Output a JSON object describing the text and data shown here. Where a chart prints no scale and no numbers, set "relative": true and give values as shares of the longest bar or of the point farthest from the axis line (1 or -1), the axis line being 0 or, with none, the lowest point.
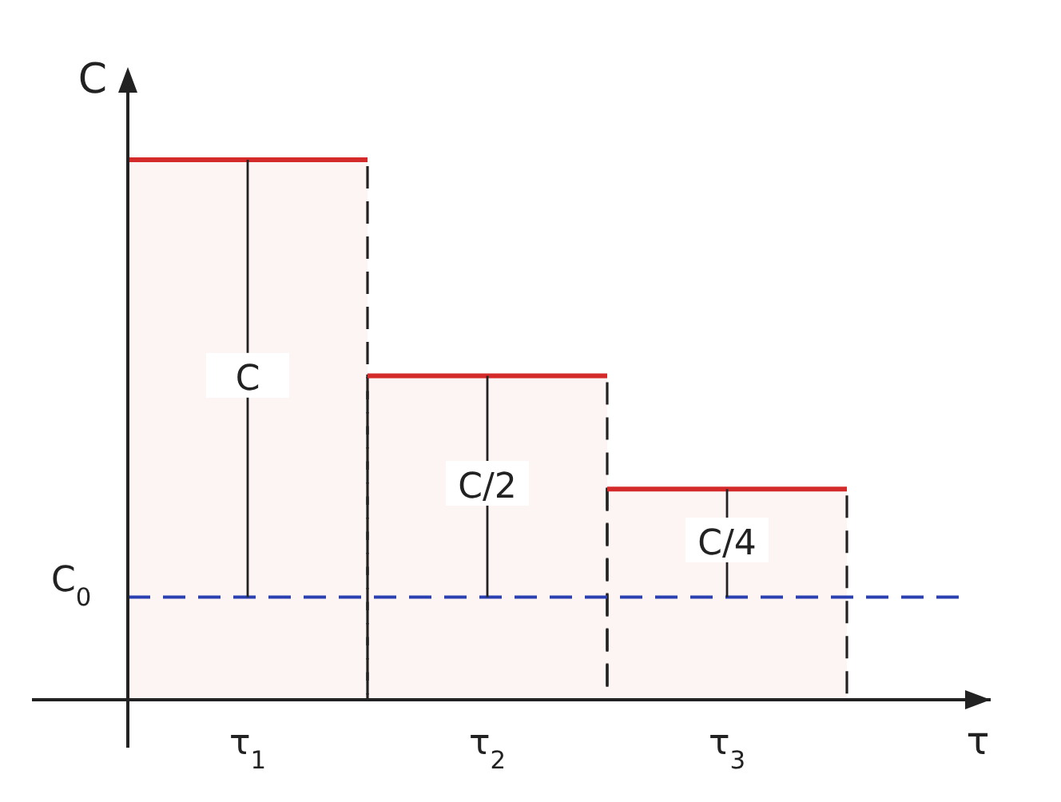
{
  "chart_data": {
    "type": "bar",
    "relative": true,
    "xlabel": "τ",
    "ylabel": "C",
    "categories": [
      "τ$_{1}$",
      "τ$_{2}$",
      "τ$_{3}$"
    ],
    "values": [
      1,
      0.6,
      0.39
    ],
    "color": "#d42a2a",
    "ref_lines": [
      {
        "axis": "y",
        "value": 0.19,
        "label": "C$_{0}$",
        "color": "#2a3fb0",
        "line_style": "dashed"
      }
    ],
    "annotations": [
      "C",
      "C/2",
      "C/4"
    ]
  }
}
